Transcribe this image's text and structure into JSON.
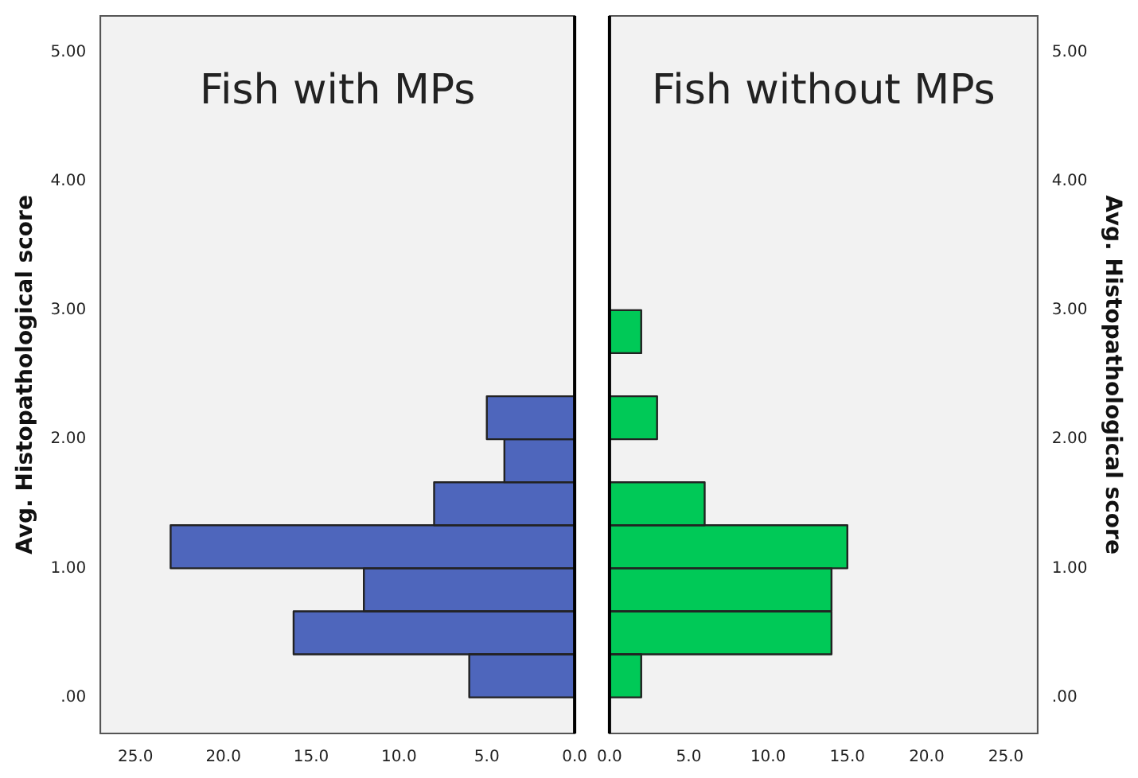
{
  "chart_data": [
    {
      "type": "histogram",
      "orientation": "horizontal",
      "title": "Fish with MPs",
      "ylabel": "Avg. Histopathological score",
      "bins": [
        0,
        0.333,
        0.667,
        1,
        1.333,
        1.667,
        2,
        2.333,
        2.667,
        3
      ],
      "values": [
        6,
        16,
        12,
        23,
        8,
        4,
        5,
        0,
        0
      ],
      "color": "#4e66bc",
      "xlim": [
        27,
        0
      ],
      "xticks": [
        {
          "value": 25,
          "label": "25.0"
        },
        {
          "value": 20,
          "label": "20.0"
        },
        {
          "value": 15,
          "label": "15.0"
        },
        {
          "value": 10,
          "label": "10.0"
        },
        {
          "value": 5,
          "label": "5.0"
        },
        {
          "value": 0,
          "label": "0.0"
        }
      ],
      "ylim": [
        -0.28,
        5.28
      ],
      "yticks": [
        {
          "value": 0,
          "label": ".00"
        },
        {
          "value": 1,
          "label": "1.00"
        },
        {
          "value": 2,
          "label": "2.00"
        },
        {
          "value": 3,
          "label": "3.00"
        },
        {
          "value": 4,
          "label": "4.00"
        },
        {
          "value": 5,
          "label": "5.00"
        }
      ],
      "grid": false,
      "legend": false
    },
    {
      "type": "histogram",
      "orientation": "horizontal",
      "title": "Fish without MPs",
      "ylabel": "Avg. Histopathological score",
      "bins": [
        0,
        0.333,
        0.667,
        1,
        1.333,
        1.667,
        2,
        2.333,
        2.667,
        3
      ],
      "values": [
        2,
        14,
        14,
        15,
        6,
        0,
        3,
        0,
        2
      ],
      "color": "#00c957",
      "xlim": [
        0,
        27
      ],
      "xticks": [
        {
          "value": 0,
          "label": "0.0"
        },
        {
          "value": 5,
          "label": "5.0"
        },
        {
          "value": 10,
          "label": "10.0"
        },
        {
          "value": 15,
          "label": "15.0"
        },
        {
          "value": 20,
          "label": "20.0"
        },
        {
          "value": 25,
          "label": "25.0"
        }
      ],
      "ylim": [
        -0.28,
        5.28
      ],
      "yticks": [
        {
          "value": 0,
          "label": ".00"
        },
        {
          "value": 1,
          "label": "1.00"
        },
        {
          "value": 2,
          "label": "2.00"
        },
        {
          "value": 3,
          "label": "3.00"
        },
        {
          "value": 4,
          "label": "4.00"
        },
        {
          "value": 5,
          "label": "5.00"
        }
      ],
      "grid": false,
      "legend": false
    }
  ]
}
